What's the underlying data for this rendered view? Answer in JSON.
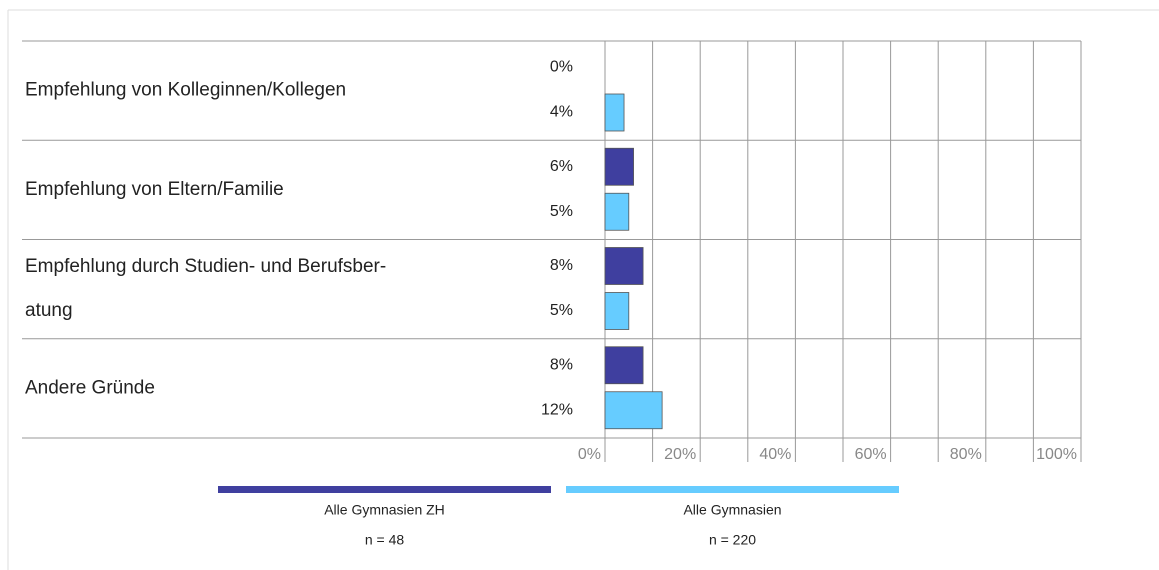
{
  "chart_data": {
    "type": "hbar",
    "categories": [
      [
        "Empfehlung von Kolleginnen/Kollegen"
      ],
      [
        "Empfehlung von Eltern/Familie"
      ],
      [
        "Empfehlung durch Studien- und Berufsber-",
        "atung"
      ],
      [
        "Andere Gründe"
      ]
    ],
    "series": [
      {
        "name": "Alle Gymnasien ZH",
        "n": "n = 48",
        "color": "#3f3f9f",
        "values": [
          0,
          6,
          8,
          8
        ],
        "value_labels": [
          "0%",
          "6%",
          "8%",
          "8%"
        ]
      },
      {
        "name": "Alle Gymnasien",
        "n": "n = 220",
        "color": "#66ccff",
        "values": [
          4,
          5,
          5,
          12
        ],
        "value_labels": [
          "4%",
          "5%",
          "5%",
          "12%"
        ]
      }
    ],
    "xlim": [
      0,
      100
    ],
    "xticks": [
      {
        "value": 0,
        "label": "0%"
      },
      {
        "value": 20,
        "label": "20%"
      },
      {
        "value": 40,
        "label": "40%"
      },
      {
        "value": 60,
        "label": "60%"
      },
      {
        "value": 80,
        "label": "80%"
      },
      {
        "value": 100,
        "label": "100%"
      }
    ],
    "minor_xticks": [
      10,
      30,
      50,
      70,
      90
    ],
    "grid": true
  }
}
